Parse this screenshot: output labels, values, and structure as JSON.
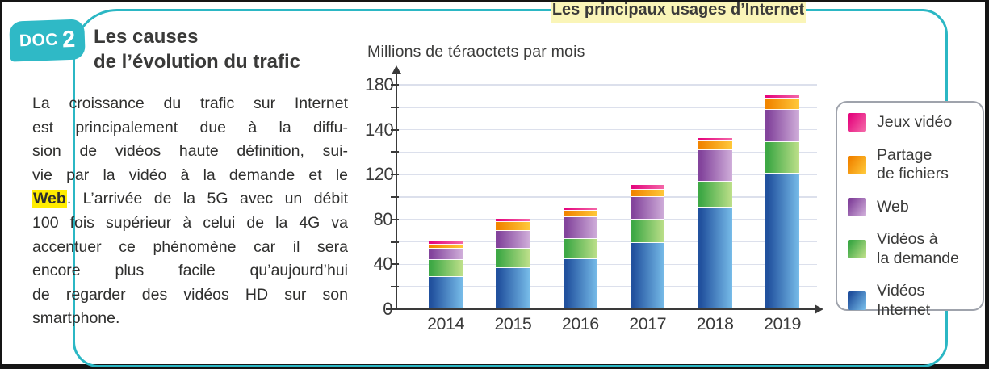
{
  "page": {
    "badge": {
      "doc": "DOC",
      "num": "2"
    },
    "title_line1": "Les causes",
    "title_line2": "de l’évolution du trafic",
    "paragraph_lines": [
      "La croissance du trafic sur Internet",
      "est principalement due à la diffu-",
      "sion de vidéos haute définition, sui-",
      "vie par la vidéo à la demande et le",
      {
        "pre": "",
        "hl": "Web",
        "post": ". L’arrivée de la 5G avec un débit"
      },
      "100 fois supérieur à celui de la 4G va",
      "accentuer ce phénomène car il sera",
      "encore  plus  facile  qu’aujourd’hui",
      "de regarder des vidéos HD sur son",
      "smartphone."
    ],
    "top_label": "Les principaux usages d’Internet"
  },
  "chart_data": {
    "type": "bar",
    "stacked": true,
    "title": "Millions de téraoctets par mois",
    "xlabel": "",
    "ylabel": "Millions de téraoctets par mois",
    "categories": [
      "2014",
      "2015",
      "2016",
      "2017",
      "2018",
      "2019"
    ],
    "series": [
      {
        "name": "Vidéos Internet",
        "color": "internet",
        "values": [
          28,
          36,
          44,
          58,
          90,
          120
        ]
      },
      {
        "name": "Vidéos à la demande",
        "color": "vod",
        "values": [
          15,
          17,
          18,
          21,
          23,
          28
        ]
      },
      {
        "name": "Web",
        "color": "web",
        "values": [
          10,
          16,
          19,
          20,
          28,
          29
        ]
      },
      {
        "name": "Partage de fichiers",
        "color": "partage",
        "values": [
          4,
          8,
          6,
          7,
          8,
          10
        ]
      },
      {
        "name": "Jeux vidéo",
        "color": "jeux",
        "values": [
          3,
          3,
          3,
          4,
          3,
          3
        ]
      }
    ],
    "totals": [
      60,
      80,
      90,
      110,
      152,
      190
    ],
    "y_axis_labels_printed": [
      "180",
      "140",
      "120",
      "80",
      "40",
      "0"
    ],
    "axis_max_units": 200,
    "units_per_gridline": 20,
    "grid": true,
    "legend_position": "right",
    "legend": [
      {
        "color": "jeux",
        "lines": [
          "Jeux vidéo"
        ]
      },
      {
        "color": "partage",
        "lines": [
          "Partage",
          "de fichiers"
        ]
      },
      {
        "color": "web",
        "lines": [
          "Web"
        ]
      },
      {
        "color": "vod",
        "lines": [
          "Vidéos à",
          "la demande"
        ]
      },
      {
        "color": "internet",
        "lines": [
          "Vidéos",
          "Internet"
        ]
      }
    ],
    "colors": {
      "jeux": {
        "from": "#e5087e",
        "to": "#f468a8"
      },
      "partage": {
        "from": "#f18500",
        "to": "#ffc93a"
      },
      "web": {
        "from": "#83449c",
        "to": "#d0aeda"
      },
      "vod": {
        "from": "#3ea845",
        "to": "#bee08a"
      },
      "internet": {
        "from": "#21519e",
        "to": "#77bce9"
      }
    },
    "accent_teal": "#2bb7c4",
    "highlight_yellow": "#ffec00",
    "label_bg_yellow": "#faf5b8"
  }
}
